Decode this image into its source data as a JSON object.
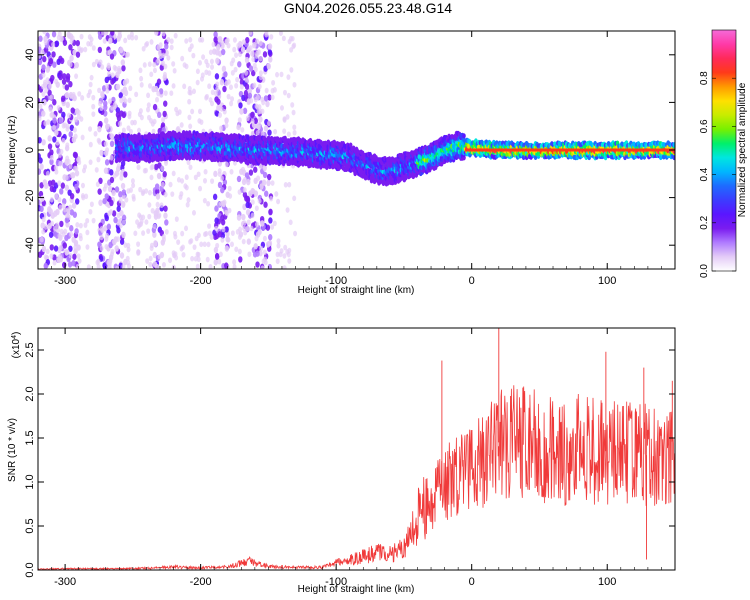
{
  "figure": {
    "title": "GN04.2026.055.23.48.G14"
  },
  "chart_data": [
    {
      "type": "heatmap",
      "xlabel": "Height of straight line (km)",
      "ylabel": "Frequency (Hz)",
      "xlim": [
        -320,
        150
      ],
      "ylim": [
        -50,
        50
      ],
      "x_ticks": [
        -300,
        -200,
        -100,
        0,
        100
      ],
      "y_ticks": [
        -40,
        -20,
        0,
        20,
        40
      ],
      "colorbar": {
        "label": "Normalized spectral amplitude",
        "range": [
          0,
          1
        ],
        "ticks": [
          "0.0",
          "0.2",
          "0.4",
          "0.6",
          "0.8"
        ],
        "tick_values": [
          0.0,
          0.2,
          0.4,
          0.6,
          0.8
        ],
        "colors": [
          "#ffffff",
          "#e4ccf7",
          "#b07cff",
          "#7a1cf0",
          "#5a16ff",
          "#3c3cff",
          "#1e6bff",
          "#00b6ff",
          "#00e6e0",
          "#00f06a",
          "#78f000",
          "#c8ec00",
          "#ffe000",
          "#ff9a00",
          "#ff3a1a",
          "#ff2a5a",
          "#ff3aa8",
          "#f56ad8"
        ]
      },
      "ridge_frequency": {
        "x": [
          -260,
          -240,
          -220,
          -200,
          -180,
          -160,
          -140,
          -120,
          -100,
          -90,
          -80,
          -70,
          -60,
          -50,
          -40,
          -30,
          -20,
          -10,
          0,
          20,
          40,
          60,
          80,
          100,
          120,
          150
        ],
        "y": [
          1,
          1,
          2,
          2,
          1,
          0,
          0,
          -1,
          -2,
          -3,
          -6,
          -8,
          -9,
          -7,
          -5,
          -3,
          0,
          2,
          1,
          0,
          0,
          0,
          0,
          0,
          0,
          0
        ]
      },
      "noise_bands_x": [
        [
          -320,
          -290
        ],
        [
          -275,
          -255
        ],
        [
          -235,
          -225
        ],
        [
          -190,
          -180
        ],
        [
          -172,
          -148
        ]
      ],
      "grid": false
    },
    {
      "type": "line",
      "xlabel": "Height of straight line (km)",
      "ylabel": "SNR (10 * v/v)",
      "y_multiplier_label": "(x10",
      "y_multiplier_exp": "4",
      "xlim": [
        -320,
        150
      ],
      "ylim": [
        0,
        27500
      ],
      "x_ticks": [
        -300,
        -200,
        -100,
        0,
        100
      ],
      "y_ticks": [
        0,
        5000,
        10000,
        15000,
        20000,
        25000
      ],
      "y_tick_labels": [
        "0.0",
        "0.5",
        "1.0",
        "1.5",
        "2.0",
        "2.5"
      ],
      "color": "#f03a3a",
      "grid": false,
      "series": [
        {
          "x": [
            -320,
            -300,
            -280,
            -260,
            -240,
            -220,
            -200,
            -180,
            -165,
            -150,
            -130,
            -110,
            -100,
            -90,
            -80,
            -70,
            -60,
            -50,
            -45,
            -40,
            -35,
            -30,
            -25,
            -20,
            -15,
            -10,
            -5,
            0,
            10,
            20,
            30,
            40,
            50,
            60,
            70,
            80,
            90,
            100,
            110,
            120,
            130,
            140,
            150
          ],
          "y": [
            100,
            150,
            150,
            150,
            200,
            350,
            250,
            350,
            1000,
            400,
            300,
            300,
            800,
            1200,
            1500,
            2000,
            1800,
            2500,
            4000,
            6000,
            7000,
            7500,
            9000,
            10000,
            10500,
            11000,
            11500,
            12000,
            13000,
            14500,
            15000,
            14500,
            14000,
            13500,
            13000,
            14000,
            13500,
            13500,
            13000,
            13500,
            13000,
            12500,
            12500
          ]
        }
      ],
      "peaks": [
        {
          "x": -36,
          "y": 8500
        },
        {
          "x": -22,
          "y": 23800
        },
        {
          "x": 20,
          "y": 27500
        },
        {
          "x": 99,
          "y": 24800
        },
        {
          "x": 127,
          "y": 23000
        },
        {
          "x": 129,
          "y": 1200
        },
        {
          "x": 148,
          "y": 21500
        }
      ]
    }
  ]
}
